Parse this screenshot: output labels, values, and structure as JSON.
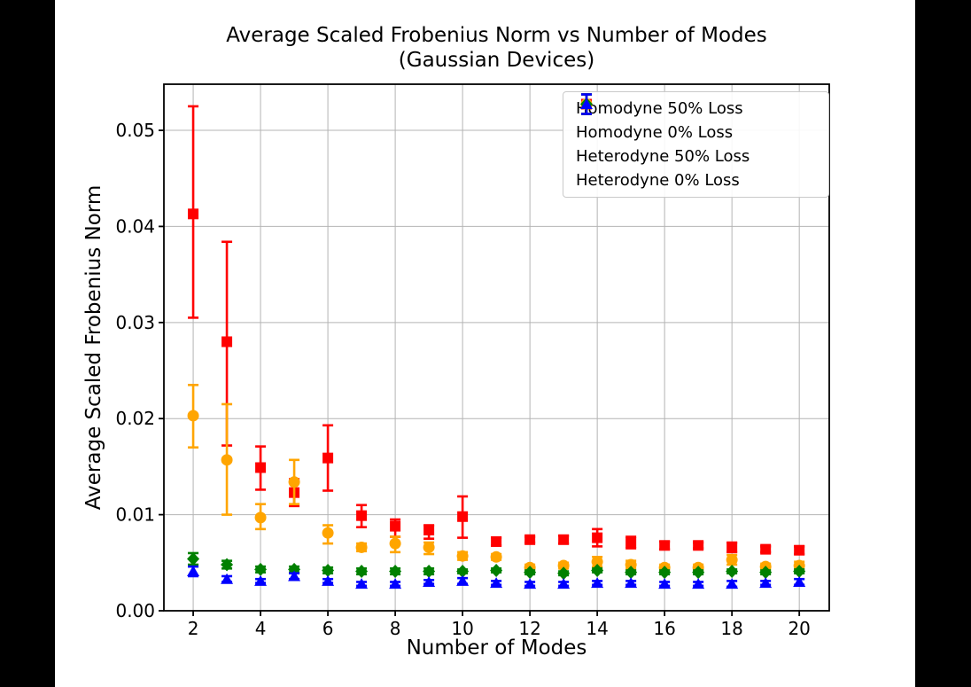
{
  "window": {
    "background_color": "#000000",
    "figure_background_color": "#ffffff"
  },
  "chart_data": {
    "type": "scatter",
    "subtype": "errorbar",
    "title": "Average Scaled Frobenius Norm vs Number of Modes",
    "subtitle": "(Gaussian Devices)",
    "xlabel": "Number of Modes",
    "ylabel": "Average Scaled Frobenius Norm",
    "xlim": [
      1.13,
      20.89
    ],
    "ylim": [
      0,
      0.0548
    ],
    "xticks": [
      2,
      4,
      6,
      8,
      10,
      12,
      14,
      16,
      18,
      20
    ],
    "ytick_values": [
      0,
      0.01,
      0.02,
      0.03,
      0.04,
      0.05
    ],
    "ytick_labels": [
      "0.00",
      "0.01",
      "0.02",
      "0.03",
      "0.04",
      "0.05"
    ],
    "grid": true,
    "grid_color": "#b4b4b4",
    "legend_position": "upper right",
    "x": [
      2,
      3,
      4,
      5,
      6,
      7,
      8,
      9,
      10,
      11,
      12,
      13,
      14,
      15,
      16,
      17,
      18,
      19,
      20
    ],
    "series": [
      {
        "name": "Homodyne 50% Loss",
        "color": "#ff0000",
        "marker": "square",
        "values": [
          0.0413,
          0.028,
          0.0149,
          0.0123,
          0.0159,
          0.0099,
          0.0088,
          0.0084,
          0.0098,
          0.0072,
          0.0074,
          0.0074,
          0.0076,
          0.0071,
          0.0068,
          0.0068,
          0.0066,
          0.0064,
          0.0063
        ],
        "err_low": [
          0.0305,
          0.0172,
          0.0126,
          0.0109,
          0.0125,
          0.0087,
          0.0077,
          0.0075,
          0.0076,
          0.0068,
          0.0071,
          0.007,
          0.0067,
          0.0065,
          0.0064,
          0.0065,
          0.0061,
          0.0061,
          0.0059
        ],
        "err_high": [
          0.0525,
          0.0384,
          0.0171,
          0.0137,
          0.0193,
          0.011,
          0.0095,
          0.0089,
          0.0119,
          0.0076,
          0.0077,
          0.0078,
          0.0085,
          0.0077,
          0.0072,
          0.0071,
          0.0071,
          0.0067,
          0.0067
        ]
      },
      {
        "name": "Homodyne 0% Loss",
        "color": "#ffa500",
        "marker": "circle",
        "values": [
          0.0203,
          0.0157,
          0.0097,
          0.0134,
          0.0081,
          0.0066,
          0.007,
          0.0066,
          0.0057,
          0.0056,
          0.0045,
          0.0047,
          0.0051,
          0.0048,
          0.0045,
          0.0045,
          0.0053,
          0.0046,
          0.0047
        ],
        "err_low": [
          0.017,
          0.01,
          0.0085,
          0.0111,
          0.007,
          0.0062,
          0.0061,
          0.0059,
          0.0053,
          0.0053,
          0.0042,
          0.0044,
          0.0046,
          0.0044,
          0.0042,
          0.0042,
          0.0048,
          0.0043,
          0.0043
        ],
        "err_high": [
          0.0235,
          0.0215,
          0.0111,
          0.0157,
          0.0089,
          0.007,
          0.0077,
          0.0071,
          0.0061,
          0.0059,
          0.0048,
          0.005,
          0.0056,
          0.0052,
          0.0048,
          0.0048,
          0.0058,
          0.0049,
          0.0051
        ]
      },
      {
        "name": "Heterodyne 50% Loss",
        "color": "#008000",
        "marker": "diamond",
        "values": [
          0.0054,
          0.0048,
          0.0043,
          0.0043,
          0.0042,
          0.0041,
          0.0041,
          0.0041,
          0.0041,
          0.0042,
          0.004,
          0.0039,
          0.0042,
          0.004,
          0.004,
          0.004,
          0.0041,
          0.004,
          0.0041
        ],
        "err_low": [
          0.0048,
          0.0044,
          0.004,
          0.004,
          0.0039,
          0.0038,
          0.0038,
          0.0038,
          0.0039,
          0.004,
          0.0038,
          0.0037,
          0.004,
          0.0038,
          0.0038,
          0.0038,
          0.0039,
          0.0038,
          0.0039
        ],
        "err_high": [
          0.006,
          0.0052,
          0.0046,
          0.0046,
          0.0045,
          0.0044,
          0.0044,
          0.0044,
          0.0043,
          0.0044,
          0.0042,
          0.0041,
          0.0044,
          0.0042,
          0.0042,
          0.0042,
          0.0043,
          0.0042,
          0.0043
        ]
      },
      {
        "name": "Heterodyne 0% Loss",
        "color": "#0000ff",
        "marker": "triangle",
        "values": [
          0.0041,
          0.0033,
          0.0031,
          0.0036,
          0.0031,
          0.0028,
          0.0028,
          0.003,
          0.0031,
          0.0029,
          0.0028,
          0.0028,
          0.0029,
          0.0029,
          0.0028,
          0.0028,
          0.0028,
          0.0029,
          0.003
        ],
        "err_low": [
          0.0036,
          0.003,
          0.0029,
          0.0033,
          0.0029,
          0.0026,
          0.0026,
          0.0028,
          0.0028,
          0.0027,
          0.0026,
          0.0026,
          0.0027,
          0.0027,
          0.0026,
          0.0026,
          0.0025,
          0.0027,
          0.0027
        ],
        "err_high": [
          0.0046,
          0.0036,
          0.0033,
          0.0039,
          0.0033,
          0.003,
          0.003,
          0.0032,
          0.0034,
          0.0031,
          0.003,
          0.003,
          0.0031,
          0.0031,
          0.003,
          0.003,
          0.0031,
          0.0031,
          0.0033
        ]
      }
    ]
  }
}
